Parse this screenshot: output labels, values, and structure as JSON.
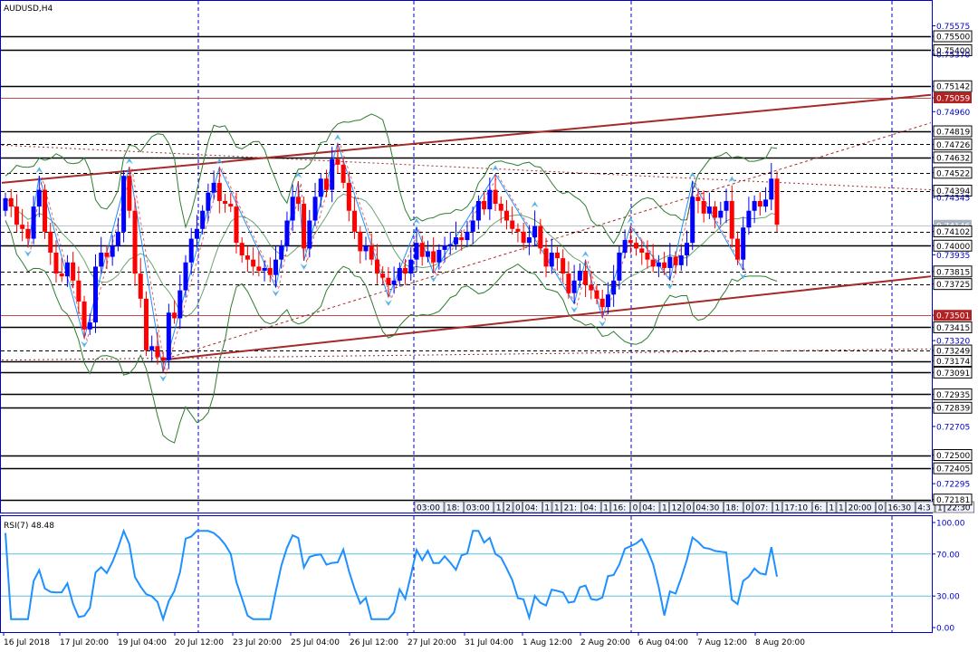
{
  "window": {
    "symbol_label": "AUDUSD,H4",
    "rsi_label": "RSI(7) 48.48"
  },
  "price_axis": {
    "ticks": [
      "0.75575",
      "0.75500",
      "0.75400",
      "0.75370",
      "0.75142",
      "0.75059",
      "0.74960",
      "0.74819",
      "0.74726",
      "0.74632",
      "0.74522",
      "0.74394",
      "0.74345",
      "0.74146",
      "0.74102",
      "0.74000",
      "0.73935",
      "0.73815",
      "0.73725",
      "0.73501",
      "0.73415",
      "0.73320",
      "0.73249",
      "0.73174",
      "0.73091",
      "0.72935",
      "0.72839",
      "0.72705",
      "0.72500",
      "0.72405",
      "0.72295",
      "0.72181"
    ],
    "boxed_levels": [
      "0.75500",
      "0.75400",
      "0.75142",
      "0.74819",
      "0.74726",
      "0.74632",
      "0.74522",
      "0.74394",
      "0.74102",
      "0.74000",
      "0.73815",
      "0.73725",
      "0.73415",
      "0.73249",
      "0.73174",
      "0.73091",
      "0.72935",
      "0.72839",
      "0.72500",
      "0.72405",
      "0.72181"
    ],
    "highlight_levels": [
      {
        "value": "0.75059",
        "color": "#b22222"
      },
      {
        "value": "0.73501",
        "color": "#b22222"
      },
      {
        "value": "0.74146",
        "color": "#aab4c0"
      }
    ]
  },
  "rsi_axis": {
    "ticks": [
      "100.00",
      "70.00",
      "30.00",
      "0.00"
    ]
  },
  "time_axis": {
    "labels": [
      "16 Jul 2018",
      "17 Jul 20:00",
      "19 Jul 04:00",
      "20 Jul 12:00",
      "23 Jul 20:00",
      "25 Jul 04:00",
      "26 Jul 12:00",
      "27 Jul 20:00",
      "31 Jul 04:00",
      "1 Aug 12:00",
      "2 Aug 20:00",
      "6 Aug 04:00",
      "7 Aug 12:00",
      "8 Aug 20:00"
    ]
  },
  "session_strip": {
    "cells": [
      "03:00",
      "18:",
      "03:00",
      "1",
      "2",
      "0",
      "04:",
      "1",
      "1",
      "21:",
      "04:",
      "1",
      "16:",
      "0",
      "04:",
      "1",
      "12",
      "0",
      "04:30",
      "18:",
      "0",
      "07:",
      "1",
      "17:10",
      "6:",
      "1",
      "1",
      "20:00",
      "0",
      "16:30",
      "4:3",
      "1",
      "22:30"
    ]
  },
  "colors": {
    "bull_candle": "#0000ff",
    "bear_candle": "#ff0000",
    "channel_line": "#a52a2a",
    "bollinger": "#2e7d32",
    "zigzag": "#1e90ff",
    "rsi_line": "#1e90ff",
    "grid": "#0000cd",
    "axis": "#0000cd"
  },
  "chart_data": {
    "type": "candlestick",
    "title": "AUDUSD,H4",
    "ylim": [
      0.7214,
      0.7563
    ],
    "closes": [
      0.7434,
      0.7428,
      0.7415,
      0.7412,
      0.7405,
      0.7428,
      0.744,
      0.741,
      0.7395,
      0.738,
      0.7378,
      0.7388,
      0.7375,
      0.736,
      0.734,
      0.7345,
      0.7385,
      0.7395,
      0.7392,
      0.74,
      0.741,
      0.745,
      0.7425,
      0.738,
      0.7362,
      0.7325,
      0.7328,
      0.732,
      0.7318,
      0.7352,
      0.7348,
      0.7368,
      0.7388,
      0.7405,
      0.7412,
      0.7425,
      0.7438,
      0.7445,
      0.7432,
      0.743,
      0.7428,
      0.7402,
      0.7393,
      0.739,
      0.7385,
      0.7382,
      0.7384,
      0.7379,
      0.739,
      0.74,
      0.7418,
      0.7435,
      0.743,
      0.7398,
      0.7418,
      0.7435,
      0.7448,
      0.744,
      0.7462,
      0.7458,
      0.7445,
      0.7425,
      0.741,
      0.7396,
      0.74,
      0.739,
      0.738,
      0.7377,
      0.7372,
      0.7375,
      0.7384,
      0.738,
      0.739,
      0.7402,
      0.7392,
      0.7396,
      0.7388,
      0.7397,
      0.74,
      0.7401,
      0.7406,
      0.7404,
      0.741,
      0.7418,
      0.7432,
      0.7426,
      0.744,
      0.743,
      0.7425,
      0.7418,
      0.7412,
      0.741,
      0.7402,
      0.7406,
      0.7414,
      0.7398,
      0.7385,
      0.7395,
      0.7391,
      0.738,
      0.7366,
      0.7375,
      0.7382,
      0.7372,
      0.7368,
      0.7362,
      0.7356,
      0.7365,
      0.7375,
      0.7395,
      0.7404,
      0.7402,
      0.7398,
      0.7395,
      0.739,
      0.7385,
      0.7388,
      0.7384,
      0.7392,
      0.7386,
      0.7393,
      0.7402,
      0.7435,
      0.7432,
      0.7423,
      0.7428,
      0.742,
      0.7425,
      0.7432,
      0.7405,
      0.739,
      0.7413,
      0.7425,
      0.7432,
      0.7428,
      0.7433,
      0.7448,
      0.7415
    ],
    "rsi": {
      "name": "RSI(7)",
      "last": 48.48,
      "levels": [
        70,
        30
      ],
      "ylim": [
        0,
        100
      ]
    }
  }
}
